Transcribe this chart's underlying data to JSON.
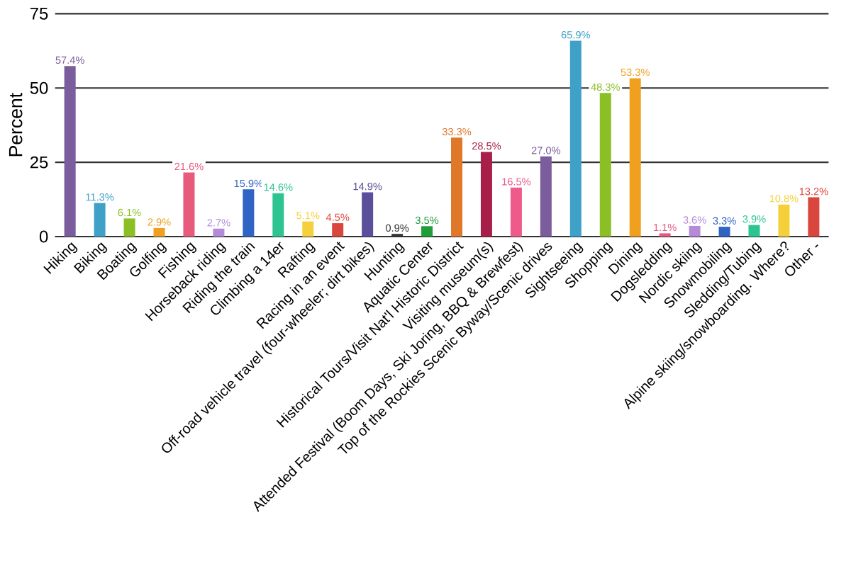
{
  "chart_data": {
    "type": "bar",
    "ylabel": "Percent",
    "categories": [
      "Hiking",
      "Biking",
      "Boating",
      "Golfing",
      "Fishing",
      "Horseback riding",
      "Riding the train",
      "Climbing a 14er",
      "Rafting",
      "Racing in an event",
      "Off-road vehicle travel (four-wheeler; dirt bikes)",
      "Hunting",
      "Aquatic Center",
      "Historical Tours/Visit Nat'l Historic District",
      "Visiting museum(s)",
      "Attended Festival (Boom Days, Ski Joring, BBQ & Brewfest)",
      "Top of the Rockies Scenic Byway/Scenic drives",
      "Sightseeing",
      "Shopping",
      "Dining",
      "Dogsledding",
      "Nordic skiing",
      "Snowmobiling",
      "Sledding/Tubing",
      "Alpine skiing/snowboarding. Where?",
      "Other -"
    ],
    "values": [
      57.4,
      11.3,
      6.1,
      2.9,
      21.6,
      2.7,
      15.9,
      14.6,
      5.1,
      4.5,
      14.9,
      0.9,
      3.5,
      33.3,
      28.5,
      16.5,
      27.0,
      65.9,
      48.3,
      53.3,
      1.1,
      3.6,
      3.3,
      3.9,
      10.8,
      13.2
    ],
    "value_labels": [
      "57.4%",
      "11.3%",
      "6.1%",
      "2.9%",
      "21.6%",
      "2.7%",
      "15.9%",
      "14.6%",
      "5.1%",
      "4.5%",
      "14.9%",
      "0.9%",
      "3.5%",
      "33.3%",
      "28.5%",
      "16.5%",
      "27.0%",
      "65.9%",
      "48.3%",
      "53.3%",
      "1.1%",
      "3.6%",
      "3.3%",
      "3.9%",
      "10.8%",
      "13.2%"
    ],
    "colors": [
      "#7b5c9c",
      "#3fa0c8",
      "#8cbf26",
      "#f0a01e",
      "#e85a7c",
      "#b58ad8",
      "#2f63c4",
      "#2ec492",
      "#f5d03a",
      "#d9463d",
      "#5a4f9a",
      "#333333",
      "#1f9e3a",
      "#e0782a",
      "#a8204a",
      "#ee5a8a",
      "#7b5c9c",
      "#3fa0c8",
      "#8cbf26",
      "#f0a01e",
      "#e85a7c",
      "#b58ad8",
      "#2f63c4",
      "#2ec492",
      "#f5d03a",
      "#d9463d"
    ],
    "ylim": [
      0,
      75
    ],
    "yticks": [
      0,
      25,
      50,
      75
    ],
    "grid": "y"
  }
}
